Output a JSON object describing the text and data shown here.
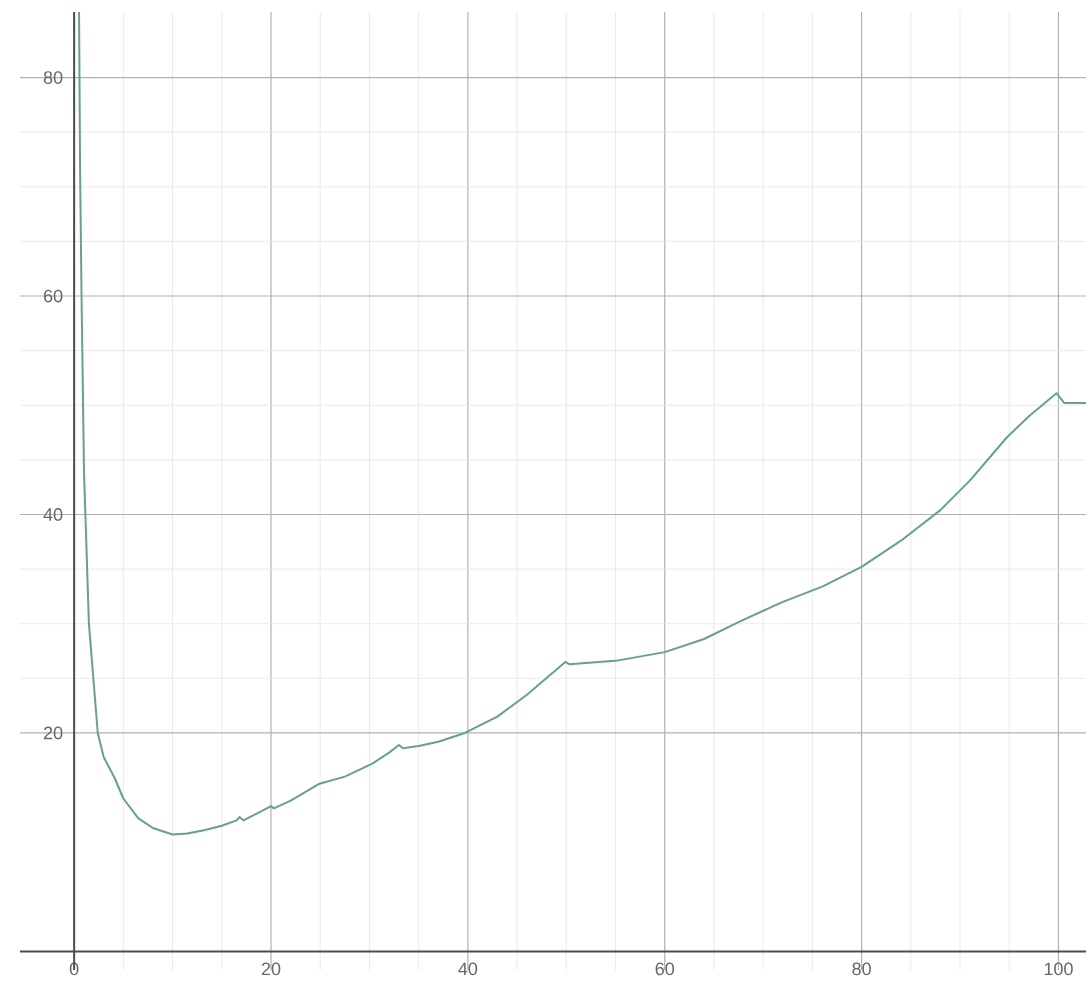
{
  "chart_data": {
    "type": "line",
    "x": [
      0.5,
      0.6,
      0.75,
      1,
      1.5,
      2.4,
      3,
      4.1,
      5,
      6.5,
      8,
      10,
      11.5,
      13.2,
      15,
      16.5,
      16.8,
      17.2,
      18.5,
      20,
      20.3,
      22,
      24.8,
      25.1,
      27.5,
      30.3,
      32,
      33,
      33.4,
      35,
      37,
      39.7,
      43,
      46,
      49.9,
      50.3,
      55,
      60,
      64,
      67.6,
      72,
      76,
      80,
      84,
      88,
      91,
      94.7,
      97,
      99.8,
      100.6,
      102.8
    ],
    "series": [
      {
        "color": "#66a37f",
        "values": [
          86,
          72,
          60,
          44,
          30,
          20,
          17.8,
          15.9,
          14,
          12.2,
          11.3,
          10.7,
          10.8,
          11.1,
          11.5,
          12.0,
          12.3,
          12.0,
          12.6,
          13.3,
          13.1,
          13.8,
          15.3,
          15.4,
          16.0,
          17.2,
          18.2,
          18.9,
          18.6,
          18.8,
          19.2,
          20,
          21.5,
          23.5,
          26.5,
          26.3,
          26.6,
          27.4,
          28.6,
          30.2,
          32.0,
          33.4,
          35.2,
          37.6,
          40.4,
          43.1,
          47,
          49,
          51.1,
          50.2,
          50.2
        ]
      }
    ],
    "xlim": [
      -5.5,
      102.8
    ],
    "ylim": [
      -1.7,
      86
    ],
    "xticks": [
      0,
      20,
      40,
      60,
      80,
      100
    ],
    "yticks": [
      20,
      40,
      60,
      80
    ],
    "grid": true,
    "marker": "none",
    "line_style": "solid"
  }
}
